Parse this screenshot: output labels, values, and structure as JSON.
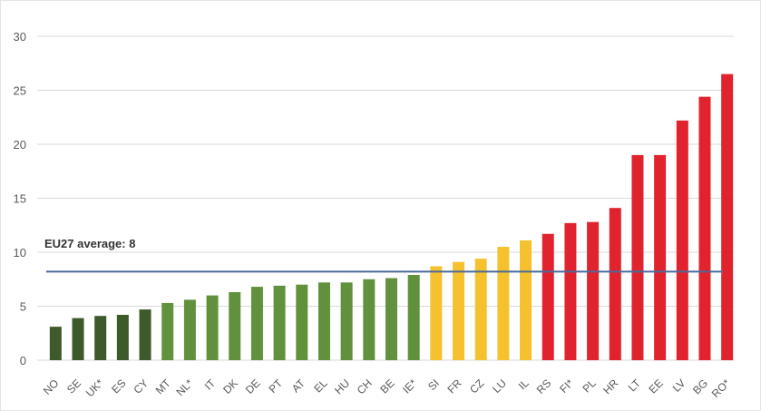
{
  "chart_data": {
    "type": "bar",
    "title": "",
    "xlabel": "",
    "ylabel": "",
    "ylim": [
      0,
      30
    ],
    "yticks": [
      0,
      5,
      10,
      15,
      20,
      25,
      30
    ],
    "grid": true,
    "categories": [
      "NO",
      "SE",
      "UK*",
      "ES",
      "CY",
      "MT",
      "NL*",
      "IT",
      "DK",
      "DE",
      "PT",
      "AT",
      "EL",
      "HU",
      "CH",
      "BE",
      "IE*",
      "SI",
      "FR",
      "CZ",
      "LU",
      "IL",
      "RS",
      "FI*",
      "PL",
      "HR",
      "LT",
      "EE",
      "LV",
      "BG",
      "RO*"
    ],
    "values": [
      3.1,
      3.9,
      4.1,
      4.2,
      4.7,
      5.3,
      5.6,
      6.0,
      6.3,
      6.8,
      6.9,
      7.0,
      7.2,
      7.2,
      7.5,
      7.6,
      7.9,
      8.7,
      9.1,
      9.4,
      10.5,
      11.1,
      11.7,
      12.7,
      12.8,
      14.1,
      19.0,
      19.0,
      22.2,
      24.4,
      26.5
    ],
    "groups": [
      "dark-green",
      "dark-green",
      "dark-green",
      "dark-green",
      "dark-green",
      "green",
      "green",
      "green",
      "green",
      "green",
      "green",
      "green",
      "green",
      "green",
      "green",
      "green",
      "green",
      "yellow",
      "yellow",
      "yellow",
      "yellow",
      "yellow",
      "red",
      "red",
      "red",
      "red",
      "red",
      "red",
      "red",
      "red",
      "red"
    ],
    "colors": {
      "dark-green": "#3d5a2a",
      "green": "#62913d",
      "yellow": "#f5c12e",
      "red": "#e1232d",
      "average_line": "#4a6a9a",
      "grid": "#d9d9d9"
    },
    "reference_line": {
      "value": 8.2,
      "label": "EU27 average: 8"
    }
  }
}
